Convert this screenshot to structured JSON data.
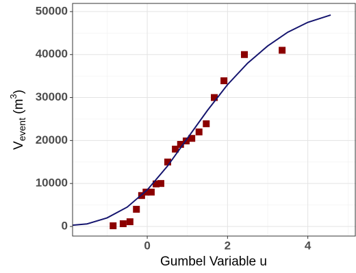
{
  "chart_data": {
    "type": "scatter",
    "x_label": "Gumbel Variable u",
    "y_label": {
      "main": "V",
      "sub": "event",
      "open": " (m",
      "sup": "3",
      "close": ")"
    },
    "xlim": [
      -1.86,
      5.2
    ],
    "ylim": [
      -2230,
      51900
    ],
    "xticks": [
      0,
      2,
      4
    ],
    "yticks": [
      0,
      10000,
      20000,
      30000,
      40000,
      50000
    ],
    "grid": true,
    "series": [
      {
        "kind": "points",
        "color": "#8b0000",
        "x": [
          -0.85,
          -0.6,
          -0.43,
          -0.27,
          -0.14,
          -0.03,
          0.1,
          0.22,
          0.34,
          0.51,
          0.7,
          0.83,
          0.97,
          1.11,
          1.29,
          1.47,
          1.67,
          1.91,
          2.42,
          3.36
        ],
        "values": [
          160,
          640,
          1100,
          4000,
          7200,
          8000,
          8000,
          9900,
          10000,
          15000,
          18000,
          19100,
          19900,
          20500,
          22000,
          23900,
          30000,
          33900,
          40000,
          41000
        ]
      },
      {
        "kind": "line",
        "color": "#14146e",
        "x": [
          -1.86,
          -1.5,
          -1,
          -0.5,
          0,
          0.5,
          1,
          1.5,
          2,
          2.5,
          3,
          3.5,
          4,
          4.57
        ],
        "values": [
          300,
          600,
          2000,
          4500,
          8500,
          14000,
          20500,
          27000,
          33000,
          38000,
          42000,
          45200,
          47500,
          49200
        ]
      }
    ]
  }
}
